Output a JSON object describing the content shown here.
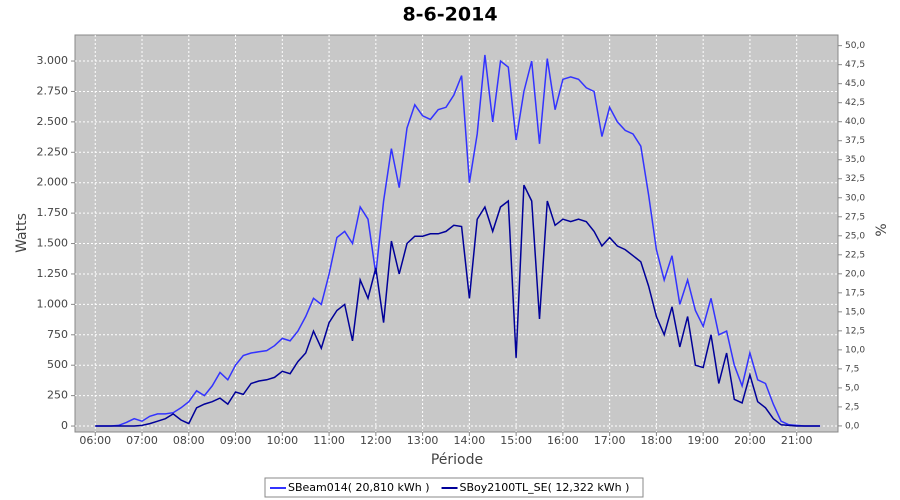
{
  "chart_data": {
    "type": "line",
    "title": "8-6-2014",
    "x_label": "Période",
    "y_label": "Watts",
    "y2_label": "%",
    "grid": true,
    "legend": "bottom",
    "xlim": [
      334,
      1313
    ],
    "xticks": [
      {
        "value": 360,
        "label": "06:00"
      },
      {
        "value": 420,
        "label": "07:00"
      },
      {
        "value": 480,
        "label": "08:00"
      },
      {
        "value": 540,
        "label": "09:00"
      },
      {
        "value": 600,
        "label": "10:00"
      },
      {
        "value": 660,
        "label": "11:00"
      },
      {
        "value": 720,
        "label": "12:00"
      },
      {
        "value": 780,
        "label": "13:00"
      },
      {
        "value": 840,
        "label": "14:00"
      },
      {
        "value": 900,
        "label": "15:00"
      },
      {
        "value": 960,
        "label": "16:00"
      },
      {
        "value": 1020,
        "label": "17:00"
      },
      {
        "value": 1080,
        "label": "18:00"
      },
      {
        "value": 1140,
        "label": "19:00"
      },
      {
        "value": 1200,
        "label": "20:00"
      },
      {
        "value": 1260,
        "label": "21:00"
      }
    ],
    "ylim": [
      -49,
      3214
    ],
    "yticks": [
      0,
      250,
      500,
      750,
      {
        "value": 1000,
        "label": "1.000"
      },
      {
        "value": 1250,
        "label": "1.250"
      },
      {
        "value": 1500,
        "label": "1.500"
      },
      {
        "value": 1750,
        "label": "1.750"
      },
      {
        "value": 2000,
        "label": "2.000"
      },
      {
        "value": 2250,
        "label": "2.250"
      },
      {
        "value": 2500,
        "label": "2.500"
      },
      {
        "value": 2750,
        "label": "2.750"
      },
      {
        "value": 3000,
        "label": "3.000"
      }
    ],
    "y2lim": [
      -0.8,
      51.4
    ],
    "y2ticks": [
      {
        "value": 0,
        "label": "0,0"
      },
      {
        "value": 2.5,
        "label": "2,5"
      },
      {
        "value": 5,
        "label": "5,0"
      },
      {
        "value": 7.5,
        "label": "7,5"
      },
      {
        "value": 10,
        "label": "10,0"
      },
      {
        "value": 12.5,
        "label": "12,5"
      },
      {
        "value": 15,
        "label": "15,0"
      },
      {
        "value": 17.5,
        "label": "17,5"
      },
      {
        "value": 20,
        "label": "20,0"
      },
      {
        "value": 22.5,
        "label": "22,5"
      },
      {
        "value": 25,
        "label": "25,0"
      },
      {
        "value": 27.5,
        "label": "27,5"
      },
      {
        "value": 30,
        "label": "30,0"
      },
      {
        "value": 32.5,
        "label": "32,5"
      },
      {
        "value": 35,
        "label": "35,0"
      },
      {
        "value": 37.5,
        "label": "37,5"
      },
      {
        "value": 40,
        "label": "40,0"
      },
      {
        "value": 42.5,
        "label": "42,5"
      },
      {
        "value": 45,
        "label": "45,0"
      },
      {
        "value": 47.5,
        "label": "47,5"
      },
      {
        "value": 50,
        "label": "50,0"
      }
    ],
    "x": [
      360,
      370,
      380,
      390,
      400,
      410,
      420,
      430,
      440,
      450,
      460,
      470,
      480,
      490,
      500,
      510,
      520,
      530,
      540,
      550,
      560,
      570,
      580,
      590,
      600,
      610,
      620,
      630,
      640,
      650,
      660,
      670,
      680,
      690,
      700,
      710,
      720,
      730,
      740,
      750,
      760,
      770,
      780,
      790,
      800,
      810,
      820,
      830,
      840,
      850,
      860,
      870,
      880,
      890,
      900,
      910,
      920,
      930,
      940,
      950,
      960,
      970,
      980,
      990,
      1000,
      1010,
      1020,
      1030,
      1040,
      1050,
      1060,
      1070,
      1080,
      1090,
      1100,
      1110,
      1120,
      1130,
      1140,
      1150,
      1160,
      1170,
      1180,
      1190,
      1200,
      1210,
      1220,
      1230,
      1240,
      1250,
      1260,
      1270,
      1280,
      1290
    ],
    "series": [
      {
        "name": "SBeam014( 20,810 kWh )",
        "color": "#3333ff",
        "values": [
          0,
          0,
          0,
          5,
          30,
          60,
          40,
          80,
          100,
          100,
          110,
          150,
          200,
          290,
          250,
          330,
          440,
          380,
          500,
          580,
          600,
          610,
          620,
          660,
          720,
          700,
          780,
          900,
          1050,
          1000,
          1250,
          1550,
          1600,
          1500,
          1800,
          1700,
          1250,
          1850,
          2280,
          1960,
          2450,
          2640,
          2550,
          2520,
          2600,
          2620,
          2720,
          2880,
          2000,
          2400,
          3050,
          2500,
          3000,
          2950,
          2350,
          2750,
          3000,
          2320,
          3020,
          2600,
          2850,
          2870,
          2850,
          2780,
          2750,
          2380,
          2620,
          2500,
          2430,
          2400,
          2300,
          1900,
          1450,
          1200,
          1400,
          1000,
          1200,
          950,
          820,
          1050,
          750,
          780,
          500,
          330,
          600,
          380,
          350,
          180,
          40,
          10,
          5,
          0,
          0,
          0
        ]
      },
      {
        "name": "SBoy2100TL_SE( 12,322 kWh )",
        "color": "#000099",
        "values": [
          0,
          0,
          0,
          0,
          0,
          0,
          5,
          20,
          40,
          60,
          100,
          50,
          20,
          150,
          180,
          200,
          230,
          180,
          280,
          260,
          350,
          370,
          380,
          400,
          450,
          430,
          530,
          600,
          780,
          640,
          850,
          950,
          1000,
          700,
          1200,
          1050,
          1300,
          850,
          1520,
          1250,
          1500,
          1560,
          1560,
          1580,
          1580,
          1600,
          1650,
          1640,
          1050,
          1700,
          1800,
          1600,
          1800,
          1850,
          560,
          1980,
          1850,
          880,
          1850,
          1650,
          1700,
          1680,
          1700,
          1680,
          1600,
          1480,
          1550,
          1480,
          1450,
          1400,
          1350,
          1150,
          900,
          750,
          980,
          650,
          900,
          500,
          480,
          750,
          350,
          600,
          220,
          190,
          420,
          200,
          150,
          60,
          10,
          5,
          0,
          0,
          0,
          0
        ]
      }
    ]
  }
}
